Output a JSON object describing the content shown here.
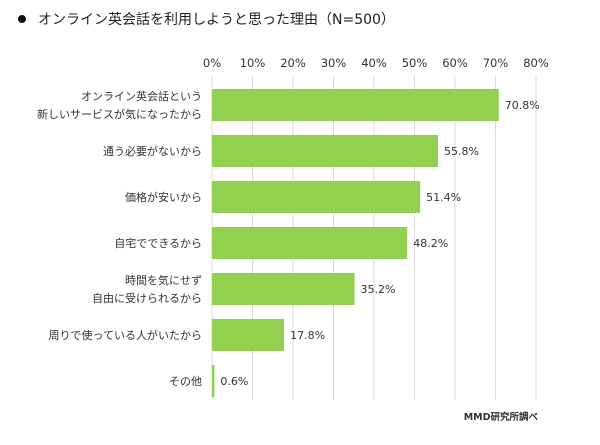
{
  "chart_data": {
    "type": "bar",
    "orientation": "horizontal",
    "title": "オンライン英会話を利用しようと思った理由（N=500）",
    "categories": [
      [
        "オンライン英会話という",
        "新しいサービスが気になったから"
      ],
      [
        "通う必要がないから"
      ],
      [
        "価格が安いから"
      ],
      [
        "自宅でできるから"
      ],
      [
        "時間を気にせず",
        "自由に受けられるから"
      ],
      [
        "周りで使っている人がいたから"
      ],
      [
        "その他"
      ]
    ],
    "values": [
      70.8,
      55.8,
      51.4,
      48.2,
      35.2,
      17.8,
      0.6
    ],
    "value_labels": [
      "70.8%",
      "55.8%",
      "51.4%",
      "48.2%",
      "35.2%",
      "17.8%",
      "0.6%"
    ],
    "x_ticks": [
      "0%",
      "10%",
      "20%",
      "30%",
      "40%",
      "50%",
      "60%",
      "70%",
      "80%"
    ],
    "xlim": [
      0,
      80
    ],
    "grid": true,
    "bar_color": "#92d050",
    "grid_color": "#d9d9d9",
    "source": "MMD研究所調べ"
  }
}
